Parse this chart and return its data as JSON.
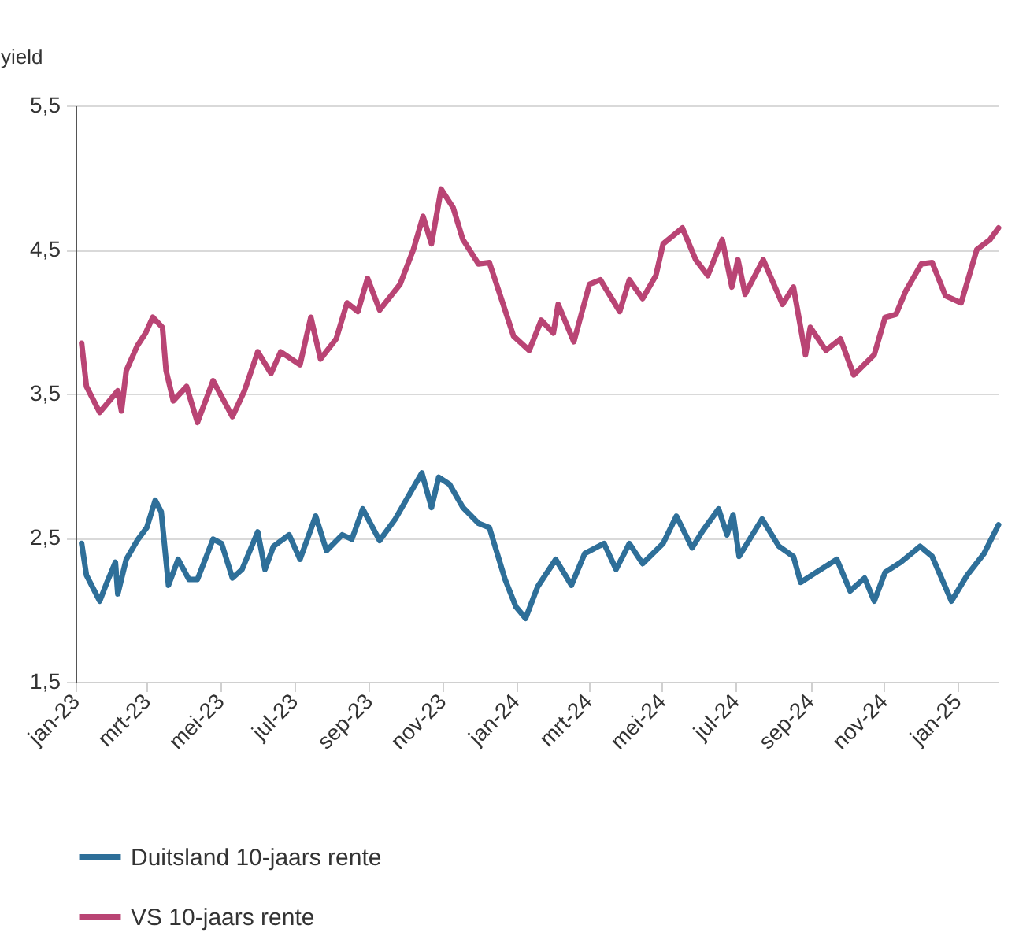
{
  "chart_data": {
    "type": "line",
    "ylabel": "yield",
    "xlim": [
      "2023-01-01",
      "2025-02-04"
    ],
    "xticks": [
      {
        "value": "2023-01-01",
        "label": "jan-23"
      },
      {
        "value": "2023-03-01",
        "label": "mrt-23"
      },
      {
        "value": "2023-05-01",
        "label": "mei-23"
      },
      {
        "value": "2023-07-01",
        "label": "jul-23"
      },
      {
        "value": "2023-09-01",
        "label": "sep-23"
      },
      {
        "value": "2023-11-01",
        "label": "nov-23"
      },
      {
        "value": "2024-01-01",
        "label": "jan-24"
      },
      {
        "value": "2024-03-01",
        "label": "mrt-24"
      },
      {
        "value": "2024-05-01",
        "label": "mei-24"
      },
      {
        "value": "2024-07-01",
        "label": "jul-24"
      },
      {
        "value": "2024-09-01",
        "label": "sep-24"
      },
      {
        "value": "2024-11-01",
        "label": "nov-24"
      },
      {
        "value": "2025-01-01",
        "label": "jan-25"
      }
    ],
    "ylim": [
      1.5,
      5.5
    ],
    "yticks": [
      {
        "value": 1.5,
        "label": "1,5"
      },
      {
        "value": 2.5,
        "label": "2,5"
      },
      {
        "value": 3.5,
        "label": "3,5"
      },
      {
        "value": 4.5,
        "label": "4,5"
      },
      {
        "value": 5.5,
        "label": "5,5"
      }
    ],
    "grid": "y",
    "legend": "bottom",
    "line_style": "solid",
    "marker": "none",
    "series": [
      {
        "name": "Duitsland 10-jaars rente",
        "color": "#2e6f99",
        "x": [
          "2023-01-06",
          "2023-01-10",
          "2023-01-21",
          "2023-01-27",
          "2023-02-03",
          "2023-02-05",
          "2023-02-12",
          "2023-02-21",
          "2023-03-01",
          "2023-03-08",
          "2023-03-13",
          "2023-03-19",
          "2023-03-27",
          "2023-04-05",
          "2023-04-12",
          "2023-04-25",
          "2023-05-02",
          "2023-05-11",
          "2023-05-19",
          "2023-06-01",
          "2023-06-07",
          "2023-06-14",
          "2023-06-27",
          "2023-07-06",
          "2023-07-19",
          "2023-07-28",
          "2023-08-10",
          "2023-08-18",
          "2023-08-27",
          "2023-09-10",
          "2023-09-23",
          "2023-10-06",
          "2023-10-15",
          "2023-10-23",
          "2023-10-29",
          "2023-11-07",
          "2023-11-18",
          "2023-12-01",
          "2023-12-10",
          "2023-12-23",
          "2024-01-01",
          "2024-01-09",
          "2024-01-19",
          "2024-02-03",
          "2024-02-16",
          "2024-02-27",
          "2024-03-14",
          "2024-03-24",
          "2024-04-04",
          "2024-04-15",
          "2024-05-02",
          "2024-05-13",
          "2024-05-26",
          "2024-06-04",
          "2024-06-17",
          "2024-06-24",
          "2024-06-29",
          "2024-07-04",
          "2024-07-23",
          "2024-08-06",
          "2024-08-18",
          "2024-08-24",
          "2024-09-06",
          "2024-09-23",
          "2024-10-04",
          "2024-10-16",
          "2024-10-24",
          "2024-11-02",
          "2024-11-15",
          "2024-12-01",
          "2024-12-11",
          "2024-12-27",
          "2025-01-09",
          "2025-01-23",
          "2025-02-04"
        ],
        "values": [
          2.46,
          2.24,
          2.06,
          2.19,
          2.33,
          2.11,
          2.35,
          2.48,
          2.57,
          2.76,
          2.68,
          2.17,
          2.35,
          2.21,
          2.21,
          2.49,
          2.46,
          2.22,
          2.28,
          2.54,
          2.28,
          2.44,
          2.52,
          2.35,
          2.65,
          2.41,
          2.52,
          2.49,
          2.7,
          2.48,
          2.63,
          2.82,
          2.95,
          2.71,
          2.92,
          2.87,
          2.71,
          2.6,
          2.57,
          2.21,
          2.02,
          1.94,
          2.16,
          2.35,
          2.17,
          2.39,
          2.46,
          2.28,
          2.46,
          2.32,
          2.46,
          2.65,
          2.43,
          2.55,
          2.7,
          2.52,
          2.66,
          2.37,
          2.63,
          2.44,
          2.37,
          2.19,
          2.26,
          2.35,
          2.13,
          2.22,
          2.06,
          2.26,
          2.33,
          2.44,
          2.37,
          2.06,
          2.24,
          2.39,
          2.59
        ]
      },
      {
        "name": "VS 10-jaars rente",
        "color": "#b94474",
        "x": [
          "2023-01-06",
          "2023-01-10",
          "2023-01-21",
          "2023-02-05",
          "2023-02-08",
          "2023-02-12",
          "2023-02-21",
          "2023-02-28",
          "2023-03-06",
          "2023-03-14",
          "2023-03-17",
          "2023-03-23",
          "2023-04-03",
          "2023-04-12",
          "2023-04-25",
          "2023-05-11",
          "2023-05-21",
          "2023-06-01",
          "2023-06-12",
          "2023-06-20",
          "2023-07-06",
          "2023-07-15",
          "2023-07-23",
          "2023-08-05",
          "2023-08-14",
          "2023-08-23",
          "2023-08-31",
          "2023-09-10",
          "2023-09-27",
          "2023-10-08",
          "2023-10-16",
          "2023-10-23",
          "2023-10-31",
          "2023-11-10",
          "2023-11-18",
          "2023-12-01",
          "2023-12-10",
          "2023-12-21",
          "2023-12-30",
          "2024-01-12",
          "2024-01-22",
          "2024-02-01",
          "2024-02-05",
          "2024-02-18",
          "2024-03-02",
          "2024-03-11",
          "2024-03-27",
          "2024-04-04",
          "2024-04-15",
          "2024-04-26",
          "2024-05-02",
          "2024-05-18",
          "2024-05-29",
          "2024-06-08",
          "2024-06-20",
          "2024-06-28",
          "2024-07-03",
          "2024-07-09",
          "2024-07-24",
          "2024-08-09",
          "2024-08-18",
          "2024-08-28",
          "2024-09-01",
          "2024-09-14",
          "2024-09-26",
          "2024-10-07",
          "2024-10-24",
          "2024-11-02",
          "2024-11-11",
          "2024-11-19",
          "2024-12-02",
          "2024-12-11",
          "2024-12-22",
          "2025-01-04",
          "2025-01-17",
          "2025-01-28",
          "2025-02-04"
        ],
        "values": [
          3.85,
          3.55,
          3.37,
          3.52,
          3.38,
          3.66,
          3.83,
          3.92,
          4.03,
          3.96,
          3.66,
          3.45,
          3.55,
          3.3,
          3.59,
          3.34,
          3.52,
          3.79,
          3.64,
          3.79,
          3.7,
          4.03,
          3.74,
          3.88,
          4.13,
          4.07,
          4.3,
          4.08,
          4.26,
          4.5,
          4.73,
          4.54,
          4.92,
          4.79,
          4.57,
          4.4,
          4.41,
          4.13,
          3.9,
          3.8,
          4.01,
          3.92,
          4.12,
          3.86,
          4.26,
          4.29,
          4.07,
          4.29,
          4.16,
          4.32,
          4.54,
          4.65,
          4.43,
          4.32,
          4.57,
          4.24,
          4.43,
          4.19,
          4.43,
          4.12,
          4.24,
          3.77,
          3.96,
          3.8,
          3.88,
          3.63,
          3.77,
          4.03,
          4.05,
          4.21,
          4.4,
          4.41,
          4.18,
          4.13,
          4.5,
          4.57,
          4.65
        ]
      }
    ]
  }
}
